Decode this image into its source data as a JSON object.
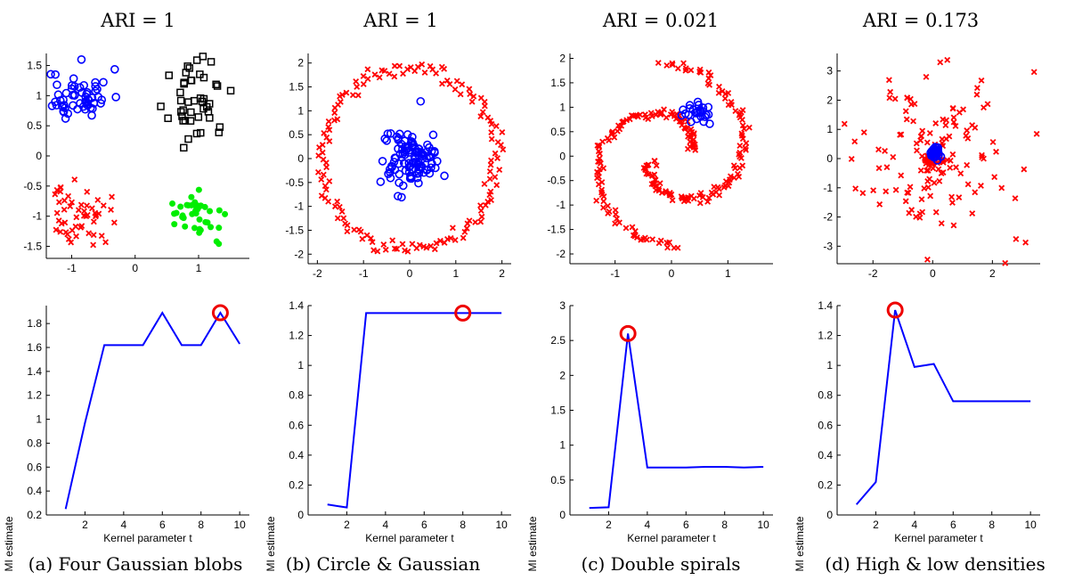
{
  "chart_data": [
    {
      "type": "scatter",
      "title": "ARI = 1",
      "caption": "(a) Four Gaussian blobs",
      "xlim": [
        -1.4,
        1.8
      ],
      "ylim": [
        -1.7,
        1.7
      ],
      "xticks": [
        "-1",
        "0",
        "1"
      ],
      "xtick_values": [
        -1,
        0,
        1
      ],
      "yticks": [
        "-1.5",
        "-1",
        "-0.5",
        "0",
        "0.5",
        "1",
        "1.5"
      ],
      "ytick_values": [
        -1.5,
        -1,
        -0.5,
        0,
        0.5,
        1,
        1.5
      ],
      "series": [
        {
          "marker": "circle",
          "color": "#0000ff",
          "center": [
            -0.9,
            1.0
          ],
          "spread": [
            0.25,
            0.22
          ],
          "n": 60,
          "seed": 11
        },
        {
          "marker": "square",
          "color": "#000000",
          "center": [
            1.0,
            0.9
          ],
          "spread": [
            0.22,
            0.3
          ],
          "n": 45,
          "seed": 23
        },
        {
          "marker": "cross",
          "color": "#ff0000",
          "center": [
            -0.9,
            -1.0
          ],
          "spread": [
            0.25,
            0.25
          ],
          "n": 55,
          "seed": 37
        },
        {
          "marker": "dot",
          "color": "#00ee00",
          "center": [
            1.0,
            -1.0
          ],
          "spread": [
            0.25,
            0.18
          ],
          "n": 40,
          "seed": 41
        }
      ]
    },
    {
      "type": "scatter",
      "title": "ARI = 1",
      "caption": "(b) Circle & Gaussian",
      "xlim": [
        -2.2,
        2.2
      ],
      "ylim": [
        -2.2,
        2.2
      ],
      "xticks": [
        "-2",
        "-1",
        "0",
        "1",
        "2"
      ],
      "xtick_values": [
        -2,
        -1,
        0,
        1,
        2
      ],
      "yticks": [
        "-2",
        "-1.5",
        "-1",
        "-0.5",
        "0",
        "0.5",
        "1",
        "1.5",
        "2"
      ],
      "ytick_values": [
        -2,
        -1.5,
        -1,
        -0.5,
        0,
        0.5,
        1,
        1.5,
        2
      ],
      "series": [
        {
          "marker": "cross",
          "color": "#ff0000",
          "shape": "ring",
          "radius": 1.9,
          "noise": 0.08,
          "n": 150,
          "seed": 5
        },
        {
          "marker": "circle",
          "color": "#0000ff",
          "center": [
            0.0,
            0.0
          ],
          "spread": [
            0.3,
            0.3
          ],
          "n": 110,
          "seed": 9
        }
      ]
    },
    {
      "type": "scatter",
      "title": "ARI = 0.021",
      "caption": "(c) Double spirals",
      "xlim": [
        -1.8,
        1.8
      ],
      "ylim": [
        -2.2,
        2.1
      ],
      "xticks": [
        "-1",
        "0",
        "1"
      ],
      "xtick_values": [
        -1,
        0,
        1
      ],
      "yticks": [
        "-2",
        "-1.5",
        "-1",
        "-0.5",
        "0",
        "0.5",
        "1",
        "1.5",
        "2"
      ],
      "ytick_values": [
        -2,
        -1.5,
        -1,
        -0.5,
        0,
        0.5,
        1,
        1.5,
        2
      ],
      "series": [
        {
          "marker": "cross",
          "color": "#ff0000",
          "shape": "spiral",
          "arm": 1,
          "n": 120,
          "noise": 0.05,
          "seed": 3
        },
        {
          "marker": "cross",
          "color": "#ff0000",
          "shape": "spiral",
          "arm": -1,
          "n": 120,
          "noise": 0.05,
          "seed": 7
        },
        {
          "marker": "circle",
          "color": "#0000ff",
          "center": [
            0.45,
            0.9
          ],
          "spread": [
            0.15,
            0.1
          ],
          "n": 25,
          "seed": 13
        }
      ]
    },
    {
      "type": "scatter",
      "title": "ARI = 0.173",
      "caption": "(d) High & low densities",
      "xlim": [
        -3.2,
        3.6
      ],
      "ylim": [
        -3.6,
        3.6
      ],
      "xticks": [
        "-2",
        "0",
        "2"
      ],
      "xtick_values": [
        -2,
        0,
        2
      ],
      "yticks": [
        "-3",
        "-2",
        "-1",
        "0",
        "1",
        "2",
        "3"
      ],
      "ytick_values": [
        -3,
        -2,
        -1,
        0,
        1,
        2,
        3
      ],
      "series": [
        {
          "marker": "cross",
          "color": "#ff0000",
          "center": [
            0.0,
            0.0
          ],
          "spread": [
            1.3,
            1.4
          ],
          "n": 130,
          "seed": 17
        },
        {
          "marker": "cross",
          "color": "#ff0000",
          "center": [
            0.0,
            0.0
          ],
          "spread": [
            0.18,
            0.1
          ],
          "n": 40,
          "seed": 19
        },
        {
          "marker": "circle",
          "color": "#0000ff",
          "center": [
            0.05,
            0.2
          ],
          "spread": [
            0.1,
            0.1
          ],
          "n": 30,
          "seed": 29
        }
      ]
    },
    {
      "type": "line",
      "xlabel": "Kernel parameter t",
      "ylabel": "MI estimate",
      "xlim": [
        0,
        10.5
      ],
      "ylim": [
        0.2,
        1.95
      ],
      "xticks": [
        "2",
        "4",
        "6",
        "8",
        "10"
      ],
      "xtick_values": [
        2,
        4,
        6,
        8,
        10
      ],
      "yticks": [
        "0.2",
        "0.4",
        "0.6",
        "0.8",
        "1",
        "1.2",
        "1.4",
        "1.6",
        "1.8"
      ],
      "ytick_values": [
        0.2,
        0.4,
        0.6,
        0.8,
        1,
        1.2,
        1.4,
        1.6,
        1.8
      ],
      "x": [
        1,
        2,
        3,
        4,
        5,
        6,
        7,
        8,
        9,
        10
      ],
      "y": [
        0.25,
        0.97,
        1.62,
        1.62,
        1.62,
        1.89,
        1.62,
        1.62,
        1.89,
        1.63
      ],
      "highlight_x": 9
    },
    {
      "type": "line",
      "xlabel": "Kernel parameter t",
      "ylabel": "MI estimate",
      "xlim": [
        0,
        10.5
      ],
      "ylim": [
        0,
        1.4
      ],
      "xticks": [
        "2",
        "4",
        "6",
        "8",
        "10"
      ],
      "xtick_values": [
        2,
        4,
        6,
        8,
        10
      ],
      "yticks": [
        "0",
        "0.2",
        "0.4",
        "0.6",
        "0.8",
        "1",
        "1.2",
        "1.4"
      ],
      "ytick_values": [
        0,
        0.2,
        0.4,
        0.6,
        0.8,
        1,
        1.2,
        1.4
      ],
      "x": [
        1,
        2,
        3,
        4,
        5,
        6,
        7,
        8,
        9,
        10
      ],
      "y": [
        0.07,
        0.05,
        1.35,
        1.35,
        1.35,
        1.35,
        1.35,
        1.35,
        1.35,
        1.35
      ],
      "highlight_x": 8
    },
    {
      "type": "line",
      "xlabel": "Kernel parameter t",
      "ylabel": "MI estimate",
      "xlim": [
        0,
        10.5
      ],
      "ylim": [
        0,
        3
      ],
      "xticks": [
        "2",
        "4",
        "6",
        "8",
        "10"
      ],
      "xtick_values": [
        2,
        4,
        6,
        8,
        10
      ],
      "yticks": [
        "0",
        "0.5",
        "1",
        "1.5",
        "2",
        "2.5",
        "3"
      ],
      "ytick_values": [
        0,
        0.5,
        1,
        1.5,
        2,
        2.5,
        3
      ],
      "x": [
        1,
        2,
        3,
        4,
        5,
        6,
        7,
        8,
        9,
        10
      ],
      "y": [
        0.1,
        0.11,
        2.6,
        0.68,
        0.68,
        0.68,
        0.69,
        0.69,
        0.68,
        0.69
      ],
      "highlight_x": 3
    },
    {
      "type": "line",
      "xlabel": "Kernel parameter t",
      "ylabel": "MI estimate",
      "xlim": [
        0,
        10.5
      ],
      "ylim": [
        0,
        1.4
      ],
      "xticks": [
        "2",
        "4",
        "6",
        "8",
        "10"
      ],
      "xtick_values": [
        2,
        4,
        6,
        8,
        10
      ],
      "yticks": [
        "0",
        "0.2",
        "0.4",
        "0.6",
        "0.8",
        "1",
        "1.2",
        "1.4"
      ],
      "ytick_values": [
        0,
        0.2,
        0.4,
        0.6,
        0.8,
        1,
        1.2,
        1.4
      ],
      "x": [
        1,
        2,
        3,
        4,
        5,
        6,
        7,
        8,
        9,
        10
      ],
      "y": [
        0.07,
        0.22,
        1.37,
        0.99,
        1.01,
        0.76,
        0.76,
        0.76,
        0.76,
        0.76
      ],
      "highlight_x": 3
    }
  ]
}
